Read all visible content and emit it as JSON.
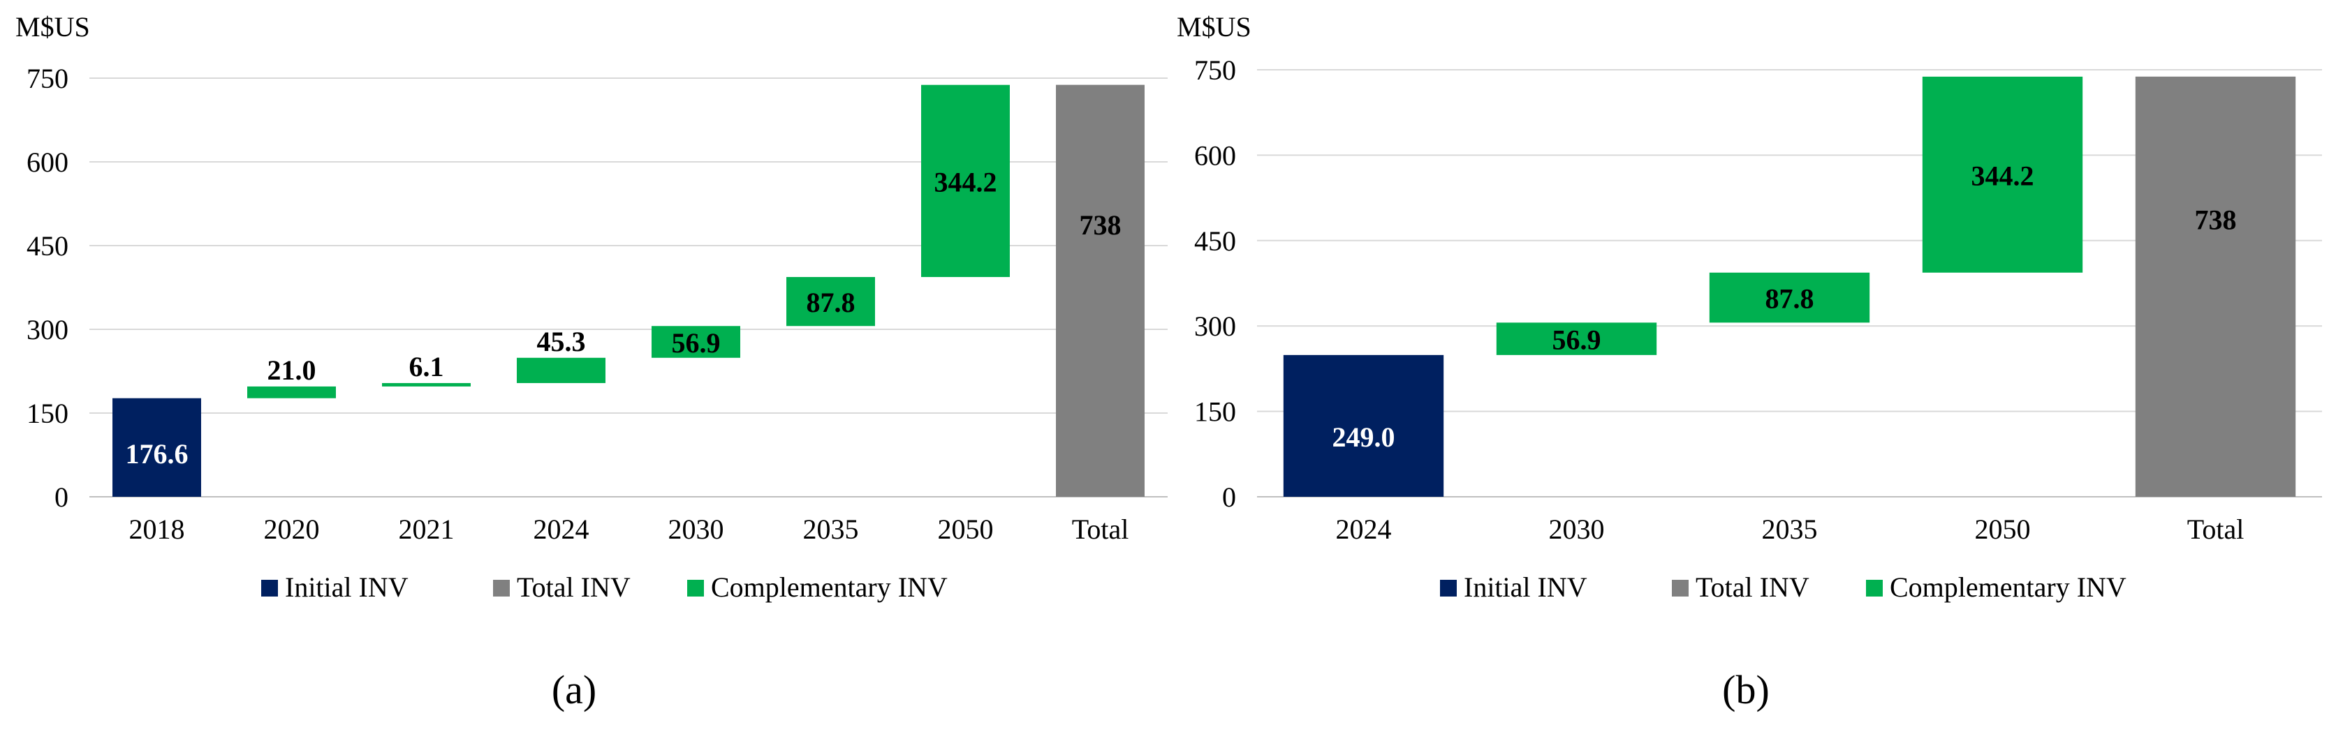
{
  "colors": {
    "initial": "#002060",
    "total": "#808080",
    "complementary": "#00B050",
    "grid": "#D9D9D9",
    "text": "#000000"
  },
  "panels": [
    {
      "label": "(a)"
    },
    {
      "label": "(b)"
    }
  ],
  "chart_data": [
    {
      "type": "bar",
      "subtype": "waterfall",
      "panel": "(a)",
      "unit_label": "M$US",
      "ylim": [
        0,
        750
      ],
      "yticks": [
        0,
        150,
        300,
        450,
        600,
        750
      ],
      "grid": true,
      "categories": [
        "2018",
        "2020",
        "2021",
        "2024",
        "2030",
        "2035",
        "2050",
        "Total"
      ],
      "values": [
        176.6,
        21.0,
        6.1,
        45.3,
        56.9,
        87.8,
        344.2,
        738
      ],
      "data_labels": [
        "176.6",
        "21.0",
        "6.1",
        "45.3",
        "56.9",
        "87.8",
        "344.2",
        "738"
      ],
      "bar_kinds": [
        "initial",
        "complementary",
        "complementary",
        "complementary",
        "complementary",
        "complementary",
        "complementary",
        "total"
      ],
      "legend_position": "bottom",
      "legend": [
        "Initial INV",
        "Total INV",
        "Complementary INV"
      ]
    },
    {
      "type": "bar",
      "subtype": "waterfall",
      "panel": "(b)",
      "unit_label": "M$US",
      "ylim": [
        0,
        750
      ],
      "yticks": [
        0,
        150,
        300,
        450,
        600,
        750
      ],
      "grid": true,
      "categories": [
        "2024",
        "2030",
        "2035",
        "2050",
        "Total"
      ],
      "values": [
        249.0,
        56.9,
        87.8,
        344.2,
        738
      ],
      "data_labels": [
        "249.0",
        "56.9",
        "87.8",
        "344.2",
        "738"
      ],
      "bar_kinds": [
        "initial",
        "complementary",
        "complementary",
        "complementary",
        "total"
      ],
      "legend_position": "bottom",
      "legend": [
        "Initial INV",
        "Total INV",
        "Complementary INV"
      ]
    }
  ]
}
